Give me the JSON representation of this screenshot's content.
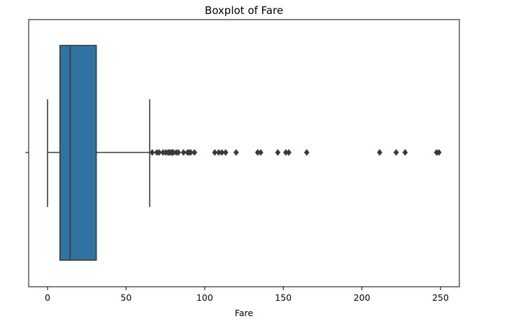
{
  "chart_data": {
    "type": "boxplot",
    "title": "Boxplot of Fare",
    "xlabel": "Fare",
    "ylabel": "",
    "xlim": [
      -12,
      262
    ],
    "x_ticks": [
      0,
      50,
      100,
      150,
      200,
      250
    ],
    "x_tick_labels": [
      "0",
      "50",
      "100",
      "150",
      "200",
      "250"
    ],
    "grid": false,
    "orientation": "horizontal",
    "box": {
      "whisker_low": 0,
      "q1": 7.9,
      "median": 14.45,
      "q3": 31.0,
      "whisker_high": 65.0
    },
    "outliers": [
      66.6,
      69.55,
      71.0,
      73.5,
      75.25,
      76.7,
      77.3,
      78.3,
      79.2,
      79.65,
      80.0,
      81.9,
      83.2,
      86.5,
      89.1,
      90.0,
      91.1,
      93.5,
      106.4,
      108.9,
      110.9,
      113.3,
      120.0,
      133.7,
      135.6,
      146.5,
      151.6,
      153.5,
      164.9,
      211.3,
      221.8,
      227.5,
      247.5,
      249.0
    ],
    "colors": {
      "box_fill": "#3274a1",
      "line": "#3a3a3a",
      "outlier": "#3a3a3a"
    }
  }
}
